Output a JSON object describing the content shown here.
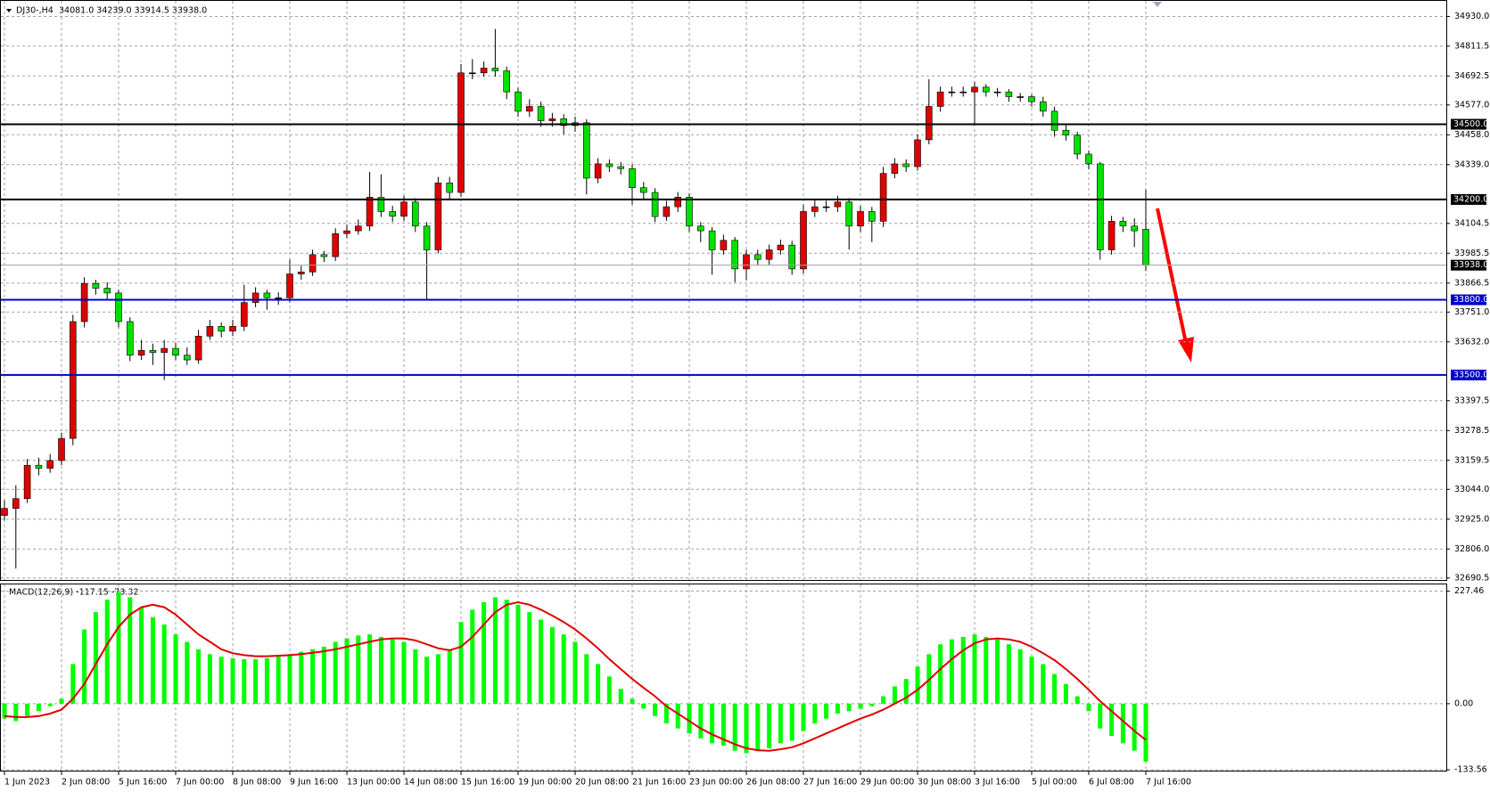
{
  "chart_data": [
    {
      "type": "candlestick",
      "title": "DJ30-,H4",
      "subtitle": "34081.0 34239.0 33914.5 33938.0",
      "up_color": "#e00000",
      "down_color": "#00e000",
      "grid": true,
      "categories": [
        "1 Jun 2023",
        null,
        null,
        null,
        null,
        "2 Jun 08:00",
        null,
        null,
        null,
        null,
        "5 Jun 16:00",
        null,
        null,
        null,
        null,
        "7 Jun 00:00",
        null,
        null,
        null,
        null,
        "8 Jun 08:00",
        null,
        null,
        null,
        null,
        "9 Jun 16:00",
        null,
        null,
        null,
        null,
        "13 Jun 00:00",
        null,
        null,
        null,
        null,
        "14 Jun 08:00",
        null,
        null,
        null,
        null,
        "15 Jun 16:00",
        null,
        null,
        null,
        null,
        "19 Jun 00:00",
        null,
        null,
        null,
        null,
        "20 Jun 08:00",
        null,
        null,
        null,
        null,
        "21 Jun 16:00",
        null,
        null,
        null,
        null,
        "23 Jun 00:00",
        null,
        null,
        null,
        null,
        "26 Jun 08:00",
        null,
        null,
        null,
        null,
        "27 Jun 16:00",
        null,
        null,
        null,
        null,
        "29 Jun 00:00",
        null,
        null,
        null,
        null,
        "30 Jun 08:00",
        null,
        null,
        null,
        null,
        "3 Jul 16:00",
        null,
        null,
        null,
        null,
        "5 Jul 00:00",
        null,
        null,
        null,
        null,
        "6 Jul 08:00",
        null,
        null,
        null,
        null,
        "7 Jul 16:00"
      ],
      "open": [
        32940,
        32968,
        33007,
        33140,
        33128,
        33159,
        33247,
        33713,
        33865,
        33846,
        33827,
        33713,
        33579,
        33598,
        33590,
        33606,
        33579,
        33560,
        33655,
        33694,
        33675,
        33694,
        33789,
        33827,
        33808,
        33808,
        33903,
        33911,
        33980,
        33972,
        34064,
        34075,
        34094,
        34209,
        34152,
        34133,
        34190,
        34094,
        33999,
        34266,
        34228,
        34705,
        34705,
        34724,
        34713,
        34629,
        34552,
        34571,
        34514,
        34522,
        34495,
        34506,
        34285,
        34342,
        34331,
        34323,
        34247,
        34228,
        34132,
        34171,
        34209,
        34094,
        34075,
        33999,
        34037,
        33923,
        33980,
        33961,
        33999,
        34018,
        33923,
        34152,
        34171,
        34171,
        34190,
        34094,
        34152,
        34113,
        34304,
        34342,
        34331,
        34438,
        34571,
        34629,
        34629,
        34629,
        34648,
        34629,
        34629,
        34610,
        34610,
        34590,
        34552,
        34476,
        34457,
        34381,
        34342,
        33999,
        34113,
        34094,
        34081
      ],
      "high": [
        33000,
        33060,
        33165,
        33170,
        33185,
        33270,
        33740,
        33890,
        33880,
        33870,
        33840,
        33730,
        33640,
        33625,
        33640,
        33630,
        33610,
        33680,
        33720,
        33710,
        33720,
        33860,
        33850,
        33840,
        33830,
        33960,
        33935,
        34000,
        33995,
        34085,
        34100,
        34120,
        34310,
        34300,
        34175,
        34215,
        34205,
        34110,
        34290,
        34290,
        34740,
        34760,
        34750,
        34880,
        34730,
        34645,
        34600,
        34590,
        34545,
        34540,
        34530,
        34520,
        34365,
        34360,
        34350,
        34340,
        34270,
        34245,
        34195,
        34230,
        34225,
        34110,
        34090,
        34060,
        34050,
        34000,
        34000,
        34020,
        34040,
        34035,
        34180,
        34200,
        34195,
        34215,
        34205,
        34175,
        34170,
        34330,
        34365,
        34360,
        34460,
        34680,
        34650,
        34650,
        34650,
        34670,
        34660,
        34645,
        34640,
        34625,
        34620,
        34610,
        34570,
        34500,
        34470,
        34395,
        34350,
        34135,
        34130,
        34125,
        34239
      ],
      "low": [
        32920,
        32728,
        32990,
        33100,
        33110,
        33140,
        33220,
        33690,
        33820,
        33800,
        33690,
        33555,
        33560,
        33540,
        33480,
        33560,
        33540,
        33545,
        33640,
        33650,
        33655,
        33675,
        33770,
        33760,
        33780,
        33790,
        33880,
        33895,
        33950,
        33955,
        34045,
        34060,
        34075,
        34130,
        34110,
        34115,
        34070,
        33800,
        33985,
        34200,
        34210,
        34680,
        34690,
        34690,
        34600,
        34530,
        34530,
        34490,
        34490,
        34460,
        34470,
        34220,
        34265,
        34310,
        34300,
        34180,
        34200,
        34110,
        34115,
        34150,
        34070,
        34030,
        33900,
        33980,
        33870,
        33880,
        33940,
        33940,
        33980,
        33900,
        33905,
        34130,
        34150,
        34150,
        34000,
        34070,
        34030,
        34090,
        34285,
        34310,
        34315,
        34420,
        34550,
        34610,
        34610,
        34500,
        34610,
        34610,
        34590,
        34590,
        34570,
        34530,
        34450,
        34435,
        34360,
        34320,
        33960,
        33980,
        34070,
        34010,
        33914.5
      ],
      "close": [
        32968,
        33007,
        33140,
        33128,
        33159,
        33247,
        33713,
        33865,
        33846,
        33827,
        33713,
        33579,
        33598,
        33590,
        33606,
        33579,
        33560,
        33655,
        33694,
        33675,
        33694,
        33789,
        33827,
        33808,
        33808,
        33903,
        33911,
        33980,
        33972,
        34064,
        34075,
        34094,
        34209,
        34152,
        34133,
        34190,
        34094,
        33999,
        34266,
        34228,
        34705,
        34705,
        34724,
        34713,
        34629,
        34552,
        34571,
        34514,
        34522,
        34495,
        34506,
        34285,
        34342,
        34331,
        34323,
        34247,
        34228,
        34132,
        34171,
        34209,
        34094,
        34075,
        33999,
        34037,
        33923,
        33980,
        33961,
        33999,
        34018,
        33923,
        34152,
        34171,
        34171,
        34190,
        34094,
        34152,
        34113,
        34304,
        34342,
        34331,
        34438,
        34571,
        34629,
        34629,
        34629,
        34648,
        34629,
        34629,
        34610,
        34610,
        34590,
        34552,
        34476,
        34457,
        34381,
        34342,
        33999,
        34113,
        34094,
        34075,
        33938
      ],
      "ylim": [
        32679,
        34992
      ],
      "yticks": [
        {
          "value": 34930,
          "label": "34930.0"
        },
        {
          "value": 34811.5,
          "label": "34811.5"
        },
        {
          "value": 34692.5,
          "label": "34692.5"
        },
        {
          "value": 34577,
          "label": "34577.0"
        },
        {
          "value": 34458,
          "label": "34458.0"
        },
        {
          "value": 34339,
          "label": "34339.0"
        },
        {
          "value": 34104.5,
          "label": "34104.5"
        },
        {
          "value": 33985.5,
          "label": "33985.5"
        },
        {
          "value": 33866.5,
          "label": "33866.5"
        },
        {
          "value": 33751,
          "label": "33751.0"
        },
        {
          "value": 33632,
          "label": "33632.0"
        },
        {
          "value": 33397.5,
          "label": "33397.5"
        },
        {
          "value": 33278.5,
          "label": "33278.5"
        },
        {
          "value": 33159.5,
          "label": "33159.5"
        },
        {
          "value": 33044,
          "label": "33044.0"
        },
        {
          "value": 32925,
          "label": "32925.0"
        },
        {
          "value": 32806,
          "label": "32806.0"
        },
        {
          "value": 32690.5,
          "label": "32690.5"
        }
      ],
      "levels": [
        {
          "value": 34500,
          "label": "34500.0",
          "color": "#000000"
        },
        {
          "value": 34200,
          "label": "34200.0",
          "color": "#000000"
        },
        {
          "value": 33800,
          "label": "33800.0",
          "color": "#0000c8"
        },
        {
          "value": 33500,
          "label": "33500.0",
          "color": "#0000c8"
        }
      ],
      "current_price": {
        "value": 33938,
        "label": "33938.0"
      }
    },
    {
      "type": "macd",
      "title": "MACD(12,26,9) -117.15 -73.32",
      "histogram": {
        "color": "#00ff00",
        "values": [
          -30,
          -35,
          -25,
          -15,
          -5,
          10,
          80,
          150,
          185,
          210,
          225,
          215,
          195,
          175,
          160,
          140,
          125,
          110,
          100,
          95,
          92,
          90,
          90,
          92,
          95,
          100,
          105,
          110,
          115,
          125,
          132,
          138,
          140,
          135,
          130,
          125,
          110,
          95,
          100,
          110,
          165,
          190,
          205,
          215,
          210,
          200,
          185,
          170,
          155,
          140,
          125,
          100,
          80,
          55,
          30,
          10,
          -10,
          -25,
          -40,
          -50,
          -60,
          -70,
          -80,
          -85,
          -95,
          -100,
          -95,
          -90,
          -80,
          -75,
          -55,
          -40,
          -30,
          -20,
          -15,
          -10,
          -5,
          15,
          35,
          50,
          75,
          100,
          120,
          130,
          135,
          140,
          135,
          130,
          120,
          110,
          95,
          80,
          60,
          40,
          15,
          -15,
          -50,
          -65,
          -80,
          -95,
          -117.15
        ]
      },
      "signal": {
        "color": "#e00000",
        "values": [
          -25,
          -27,
          -27,
          -25,
          -20,
          -12,
          10,
          40,
          80,
          120,
          155,
          180,
          195,
          200,
          195,
          180,
          160,
          140,
          125,
          110,
          102,
          98,
          96,
          96,
          97,
          98,
          100,
          103,
          106,
          110,
          115,
          120,
          125,
          130,
          132,
          132,
          128,
          120,
          112,
          108,
          115,
          135,
          160,
          185,
          200,
          205,
          200,
          190,
          178,
          165,
          150,
          132,
          112,
          90,
          70,
          50,
          32,
          15,
          -5,
          -20,
          -35,
          -50,
          -62,
          -72,
          -82,
          -90,
          -94,
          -95,
          -92,
          -88,
          -80,
          -70,
          -60,
          -50,
          -40,
          -30,
          -22,
          -12,
          0,
          12,
          28,
          48,
          70,
          90,
          108,
          122,
          130,
          132,
          130,
          125,
          115,
          102,
          88,
          70,
          50,
          28,
          5,
          -15,
          -35,
          -55,
          -73.32
        ]
      },
      "ylim": [
        -137,
        241
      ],
      "yticks": [
        {
          "value": 227.46,
          "label": "227.46"
        },
        {
          "value": 0,
          "label": "0.00"
        },
        {
          "value": -133.56,
          "label": "-133.56"
        }
      ]
    }
  ]
}
